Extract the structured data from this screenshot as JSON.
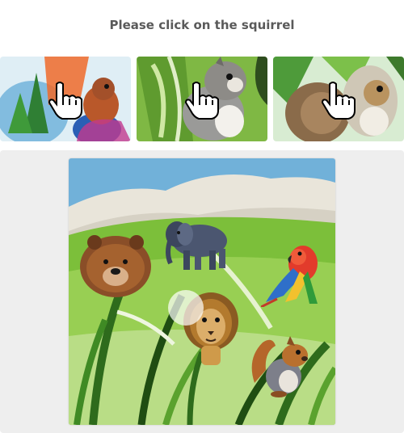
{
  "challenge": {
    "prompt": "Please click on the squirrel"
  },
  "thumbnails": [
    {
      "name": "thumbnail-1",
      "icon": "pointer-hand-icon"
    },
    {
      "name": "thumbnail-2",
      "icon": "pointer-hand-icon"
    },
    {
      "name": "thumbnail-3",
      "icon": "pointer-hand-icon"
    }
  ],
  "scene": {
    "animals": [
      "bear",
      "elephant",
      "parrot",
      "lion",
      "squirrel"
    ],
    "colors": {
      "grass": "#7cbf3a",
      "sky": "#5aa6d6",
      "mountain": "#e9e5da",
      "panel": "#eeeeee"
    }
  }
}
